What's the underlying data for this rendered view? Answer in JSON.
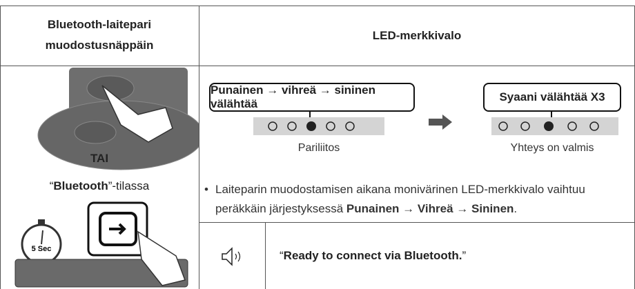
{
  "header": {
    "left": "Bluetooth-laitepari muodostusnäppäin",
    "right": "LED-merkkivalo"
  },
  "left_panel": {
    "or": "TAI",
    "mode": [
      {
        "text": "“"
      },
      {
        "text": "Bluetooth",
        "bold": true
      },
      {
        "text": "”-tilassa"
      }
    ],
    "timer": "5 Sec"
  },
  "led": [
    {
      "label": "Punainen → vihreä → sininen välähtää",
      "caption": "Pariliitos"
    },
    {
      "label": "Syaani välähtää X3",
      "caption": "Yhteys on valmis"
    }
  ],
  "bullet": [
    {
      "text": "Laiteparin muodostamisen aikana monivärinen LED-merkkivalo vaihtuu peräkkäin järjestyksessä "
    },
    {
      "text": "Punainen",
      "bold": true
    },
    {
      "text": " → "
    },
    {
      "text": "Vihreä",
      "bold": true
    },
    {
      "text": " → "
    },
    {
      "text": "Sininen",
      "bold": true
    },
    {
      "text": "."
    }
  ],
  "voice": [
    {
      "text": "“"
    },
    {
      "text": "Ready to connect via Bluetooth.",
      "bold": true
    },
    {
      "text": "”"
    }
  ]
}
